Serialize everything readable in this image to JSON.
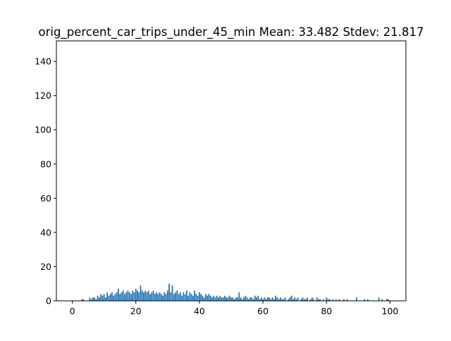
{
  "chart_data": {
    "type": "bar",
    "title": "orig_percent_car_trips_under_45_min  Mean: 33.482  Stdev: 21.817",
    "xlabel": "",
    "ylabel": "",
    "xlim": [
      -5,
      105
    ],
    "ylim": [
      0,
      152
    ],
    "x_ticks": [
      0,
      20,
      40,
      60,
      80,
      100
    ],
    "y_ticks": [
      0,
      20,
      40,
      60,
      80,
      100,
      120,
      140
    ],
    "grid": false,
    "legend": "none",
    "bar_color": "#1f77b4",
    "bins": [
      {
        "x": 3.0,
        "count": 1
      },
      {
        "x": 3.5,
        "count": 1
      },
      {
        "x": 5.5,
        "count": 2
      },
      {
        "x": 6.0,
        "count": 1
      },
      {
        "x": 6.5,
        "count": 2
      },
      {
        "x": 7.0,
        "count": 2
      },
      {
        "x": 7.5,
        "count": 1
      },
      {
        "x": 8.0,
        "count": 3
      },
      {
        "x": 8.5,
        "count": 2
      },
      {
        "x": 9.0,
        "count": 4
      },
      {
        "x": 9.5,
        "count": 3
      },
      {
        "x": 10.0,
        "count": 4
      },
      {
        "x": 10.5,
        "count": 2
      },
      {
        "x": 11.0,
        "count": 5
      },
      {
        "x": 11.5,
        "count": 3
      },
      {
        "x": 12.0,
        "count": 4
      },
      {
        "x": 12.5,
        "count": 5
      },
      {
        "x": 13.0,
        "count": 3
      },
      {
        "x": 13.5,
        "count": 4
      },
      {
        "x": 14.0,
        "count": 5
      },
      {
        "x": 14.5,
        "count": 7
      },
      {
        "x": 15.0,
        "count": 4
      },
      {
        "x": 15.5,
        "count": 5
      },
      {
        "x": 16.0,
        "count": 6
      },
      {
        "x": 16.5,
        "count": 4
      },
      {
        "x": 17.0,
        "count": 5
      },
      {
        "x": 17.5,
        "count": 6
      },
      {
        "x": 18.0,
        "count": 5
      },
      {
        "x": 18.5,
        "count": 4
      },
      {
        "x": 19.0,
        "count": 6
      },
      {
        "x": 19.5,
        "count": 5
      },
      {
        "x": 20.0,
        "count": 7
      },
      {
        "x": 20.5,
        "count": 6
      },
      {
        "x": 21.0,
        "count": 5
      },
      {
        "x": 21.5,
        "count": 9
      },
      {
        "x": 22.0,
        "count": 6
      },
      {
        "x": 22.5,
        "count": 5
      },
      {
        "x": 23.0,
        "count": 6
      },
      {
        "x": 23.5,
        "count": 5
      },
      {
        "x": 24.0,
        "count": 6
      },
      {
        "x": 24.5,
        "count": 4
      },
      {
        "x": 25.0,
        "count": 5
      },
      {
        "x": 25.5,
        "count": 6
      },
      {
        "x": 26.0,
        "count": 4
      },
      {
        "x": 26.5,
        "count": 5
      },
      {
        "x": 27.0,
        "count": 4
      },
      {
        "x": 27.5,
        "count": 5
      },
      {
        "x": 28.0,
        "count": 4
      },
      {
        "x": 28.5,
        "count": 3
      },
      {
        "x": 29.0,
        "count": 5
      },
      {
        "x": 29.5,
        "count": 4
      },
      {
        "x": 30.0,
        "count": 6
      },
      {
        "x": 30.5,
        "count": 10
      },
      {
        "x": 31.0,
        "count": 5
      },
      {
        "x": 31.5,
        "count": 9
      },
      {
        "x": 32.0,
        "count": 4
      },
      {
        "x": 32.5,
        "count": 5
      },
      {
        "x": 33.0,
        "count": 6
      },
      {
        "x": 33.5,
        "count": 4
      },
      {
        "x": 34.0,
        "count": 5
      },
      {
        "x": 34.5,
        "count": 3
      },
      {
        "x": 35.0,
        "count": 5
      },
      {
        "x": 35.5,
        "count": 4
      },
      {
        "x": 36.0,
        "count": 6
      },
      {
        "x": 36.5,
        "count": 3
      },
      {
        "x": 37.0,
        "count": 5
      },
      {
        "x": 37.5,
        "count": 4
      },
      {
        "x": 38.0,
        "count": 3
      },
      {
        "x": 38.5,
        "count": 6
      },
      {
        "x": 39.0,
        "count": 4
      },
      {
        "x": 39.5,
        "count": 3
      },
      {
        "x": 40.0,
        "count": 5
      },
      {
        "x": 40.5,
        "count": 4
      },
      {
        "x": 41.0,
        "count": 3
      },
      {
        "x": 41.5,
        "count": 2
      },
      {
        "x": 42.0,
        "count": 4
      },
      {
        "x": 42.5,
        "count": 3
      },
      {
        "x": 43.0,
        "count": 4
      },
      {
        "x": 43.5,
        "count": 3
      },
      {
        "x": 44.0,
        "count": 2
      },
      {
        "x": 44.5,
        "count": 3
      },
      {
        "x": 45.0,
        "count": 2
      },
      {
        "x": 45.5,
        "count": 3
      },
      {
        "x": 46.0,
        "count": 2
      },
      {
        "x": 46.5,
        "count": 3
      },
      {
        "x": 47.0,
        "count": 2
      },
      {
        "x": 47.5,
        "count": 2
      },
      {
        "x": 48.0,
        "count": 3
      },
      {
        "x": 48.5,
        "count": 2
      },
      {
        "x": 49.0,
        "count": 2
      },
      {
        "x": 49.5,
        "count": 3
      },
      {
        "x": 50.0,
        "count": 2
      },
      {
        "x": 50.5,
        "count": 2
      },
      {
        "x": 51.0,
        "count": 1
      },
      {
        "x": 51.5,
        "count": 2
      },
      {
        "x": 52.0,
        "count": 2
      },
      {
        "x": 52.5,
        "count": 5
      },
      {
        "x": 53.0,
        "count": 2
      },
      {
        "x": 53.5,
        "count": 1
      },
      {
        "x": 54.0,
        "count": 2
      },
      {
        "x": 54.5,
        "count": 3
      },
      {
        "x": 55.0,
        "count": 2
      },
      {
        "x": 55.5,
        "count": 1
      },
      {
        "x": 56.0,
        "count": 2
      },
      {
        "x": 56.5,
        "count": 2
      },
      {
        "x": 57.0,
        "count": 1
      },
      {
        "x": 57.5,
        "count": 3
      },
      {
        "x": 58.0,
        "count": 2
      },
      {
        "x": 58.5,
        "count": 3
      },
      {
        "x": 59.0,
        "count": 1
      },
      {
        "x": 59.5,
        "count": 2
      },
      {
        "x": 60.0,
        "count": 1
      },
      {
        "x": 60.5,
        "count": 2
      },
      {
        "x": 61.0,
        "count": 1
      },
      {
        "x": 61.5,
        "count": 2
      },
      {
        "x": 62.0,
        "count": 2
      },
      {
        "x": 62.5,
        "count": 1
      },
      {
        "x": 63.0,
        "count": 2
      },
      {
        "x": 63.5,
        "count": 1
      },
      {
        "x": 64.0,
        "count": 3
      },
      {
        "x": 64.5,
        "count": 2
      },
      {
        "x": 65.0,
        "count": 1
      },
      {
        "x": 65.5,
        "count": 2
      },
      {
        "x": 66.0,
        "count": 1
      },
      {
        "x": 66.5,
        "count": 1
      },
      {
        "x": 67.0,
        "count": 2
      },
      {
        "x": 68.0,
        "count": 1
      },
      {
        "x": 68.5,
        "count": 2
      },
      {
        "x": 69.0,
        "count": 3
      },
      {
        "x": 69.5,
        "count": 1
      },
      {
        "x": 70.0,
        "count": 2
      },
      {
        "x": 70.5,
        "count": 1
      },
      {
        "x": 71.0,
        "count": 2
      },
      {
        "x": 72.0,
        "count": 1
      },
      {
        "x": 72.5,
        "count": 2
      },
      {
        "x": 73.0,
        "count": 1
      },
      {
        "x": 73.5,
        "count": 1
      },
      {
        "x": 74.0,
        "count": 2
      },
      {
        "x": 75.0,
        "count": 1
      },
      {
        "x": 75.5,
        "count": 2
      },
      {
        "x": 76.0,
        "count": 1
      },
      {
        "x": 77.0,
        "count": 2
      },
      {
        "x": 77.5,
        "count": 1
      },
      {
        "x": 78.0,
        "count": 1
      },
      {
        "x": 79.0,
        "count": 1
      },
      {
        "x": 80.0,
        "count": 2
      },
      {
        "x": 80.5,
        "count": 1
      },
      {
        "x": 81.0,
        "count": 1
      },
      {
        "x": 82.0,
        "count": 1
      },
      {
        "x": 83.0,
        "count": 1
      },
      {
        "x": 84.0,
        "count": 1
      },
      {
        "x": 85.5,
        "count": 1
      },
      {
        "x": 86.5,
        "count": 1
      },
      {
        "x": 89.5,
        "count": 2
      },
      {
        "x": 92.0,
        "count": 1
      },
      {
        "x": 93.0,
        "count": 1
      },
      {
        "x": 96.5,
        "count": 2
      },
      {
        "x": 97.5,
        "count": 1
      },
      {
        "x": 99.0,
        "count": 1
      },
      {
        "x": 99.5,
        "count": 1
      }
    ]
  }
}
